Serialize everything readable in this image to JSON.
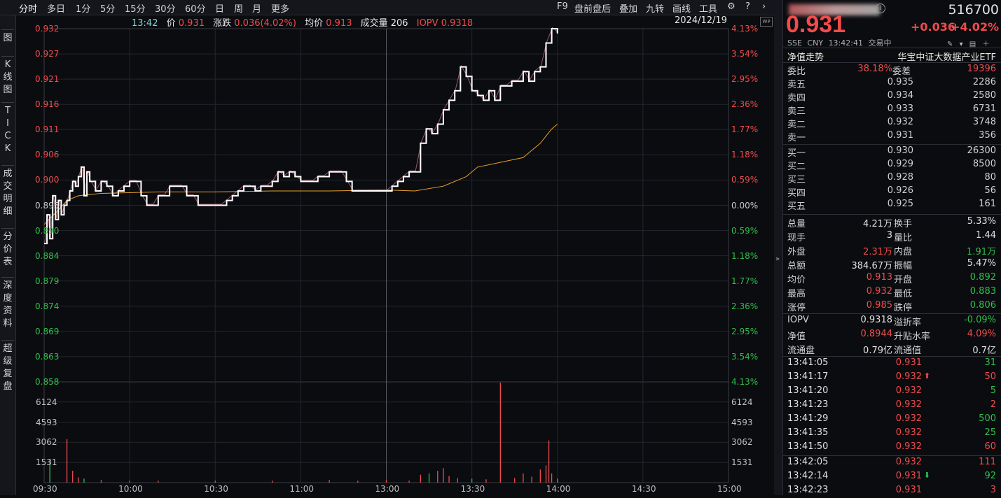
{
  "toolbar": {
    "left": [
      "分时",
      "多日",
      "1分",
      "5分",
      "15分",
      "30分",
      "60分",
      "日",
      "周",
      "月",
      "更多"
    ],
    "right": [
      "F9",
      "盘前盘后",
      "叠加",
      "九转",
      "画线",
      "工具"
    ]
  },
  "left_tabs": [
    "图",
    "K\n线\n图",
    "T\nI\nC\nK",
    "成\n交\n明\n细",
    "分\n价\n表",
    "深\n度\n资\n料",
    "超\n级\n复\n盘"
  ],
  "infobar": {
    "time": "13:42",
    "price_label": "价",
    "price": "0.931",
    "change_label": "涨跌",
    "change": "0.036(4.02%)",
    "avg_label": "均价",
    "avg": "0.913",
    "vol_label": "成交量",
    "vol": "206",
    "iopv_label": "IOPV",
    "iopv": "0.9318",
    "date": "2024/12/19"
  },
  "axis": {
    "price_ticks": [
      "0.932",
      "0.927",
      "0.921",
      "0.916",
      "0.911",
      "0.906",
      "0.900",
      "0.895",
      "0.890",
      "0.884",
      "0.879",
      "0.874",
      "0.869",
      "0.863",
      "0.858"
    ],
    "pct_ticks": [
      "4.13%",
      "3.54%",
      "2.95%",
      "2.36%",
      "1.77%",
      "1.18%",
      "0.59%",
      "0.00%",
      "0.59%",
      "1.18%",
      "1.77%",
      "2.36%",
      "2.95%",
      "3.54%",
      "4.13%"
    ],
    "vol_ticks": [
      "6124",
      "4593",
      "3062",
      "1531"
    ],
    "time_ticks": [
      "09:30",
      "10:00",
      "10:30",
      "11:00",
      "13:00",
      "13:30",
      "14:00",
      "14:30",
      "15:00"
    ]
  },
  "chart_data": {
    "type": "line",
    "ylim": [
      0.858,
      0.932
    ],
    "prev_close": 0.895,
    "price": [
      [
        0,
        0.887
      ],
      [
        1,
        0.893
      ],
      [
        2,
        0.888
      ],
      [
        3,
        0.897
      ],
      [
        4,
        0.892
      ],
      [
        5,
        0.896
      ],
      [
        6,
        0.893
      ],
      [
        7,
        0.895
      ],
      [
        8,
        0.896
      ],
      [
        9,
        0.898
      ],
      [
        10,
        0.9
      ],
      [
        11,
        0.899
      ],
      [
        12,
        0.901
      ],
      [
        13,
        0.903
      ],
      [
        14,
        0.897
      ],
      [
        15,
        0.902
      ],
      [
        16,
        0.9
      ],
      [
        18,
        0.898
      ],
      [
        20,
        0.9
      ],
      [
        22,
        0.899
      ],
      [
        24,
        0.897
      ],
      [
        26,
        0.898
      ],
      [
        28,
        0.899
      ],
      [
        30,
        0.9
      ],
      [
        32,
        0.9
      ],
      [
        34,
        0.897
      ],
      [
        36,
        0.895
      ],
      [
        38,
        0.895
      ],
      [
        40,
        0.897
      ],
      [
        42,
        0.897
      ],
      [
        44,
        0.899
      ],
      [
        46,
        0.899
      ],
      [
        48,
        0.899
      ],
      [
        50,
        0.897
      ],
      [
        52,
        0.897
      ],
      [
        54,
        0.895
      ],
      [
        56,
        0.895
      ],
      [
        58,
        0.895
      ],
      [
        60,
        0.895
      ],
      [
        62,
        0.895
      ],
      [
        64,
        0.896
      ],
      [
        66,
        0.897
      ],
      [
        68,
        0.898
      ],
      [
        70,
        0.899
      ],
      [
        72,
        0.899
      ],
      [
        74,
        0.898
      ],
      [
        76,
        0.899
      ],
      [
        78,
        0.899
      ],
      [
        80,
        0.9
      ],
      [
        82,
        0.902
      ],
      [
        84,
        0.901
      ],
      [
        86,
        0.902
      ],
      [
        88,
        0.901
      ],
      [
        90,
        0.9
      ],
      [
        92,
        0.9
      ],
      [
        94,
        0.9
      ],
      [
        96,
        0.901
      ],
      [
        98,
        0.901
      ],
      [
        100,
        0.902
      ],
      [
        102,
        0.902
      ],
      [
        104,
        0.902
      ],
      [
        106,
        0.9
      ],
      [
        108,
        0.898
      ],
      [
        110,
        0.898
      ],
      [
        112,
        0.898
      ],
      [
        114,
        0.898
      ],
      [
        116,
        0.898
      ],
      [
        118,
        0.898
      ],
      [
        120,
        0.898
      ],
      [
        122,
        0.899
      ],
      [
        124,
        0.9
      ],
      [
        126,
        0.901
      ],
      [
        128,
        0.902
      ],
      [
        130,
        0.902
      ],
      [
        132,
        0.908
      ],
      [
        134,
        0.911
      ],
      [
        136,
        0.91
      ],
      [
        138,
        0.912
      ],
      [
        140,
        0.915
      ],
      [
        142,
        0.917
      ],
      [
        144,
        0.919
      ],
      [
        146,
        0.924
      ],
      [
        148,
        0.922
      ],
      [
        150,
        0.919
      ],
      [
        152,
        0.918
      ],
      [
        154,
        0.917
      ],
      [
        156,
        0.919
      ],
      [
        158,
        0.917
      ],
      [
        160,
        0.92
      ],
      [
        162,
        0.92
      ],
      [
        164,
        0.921
      ],
      [
        166,
        0.921
      ],
      [
        168,
        0.923
      ],
      [
        170,
        0.921
      ],
      [
        172,
        0.923
      ],
      [
        174,
        0.924
      ],
      [
        176,
        0.929
      ],
      [
        178,
        0.932
      ],
      [
        180,
        0.931
      ]
    ],
    "avg": [
      [
        0,
        0.891
      ],
      [
        5,
        0.894
      ],
      [
        8,
        0.896
      ],
      [
        12,
        0.897
      ],
      [
        20,
        0.8975
      ],
      [
        40,
        0.8978
      ],
      [
        60,
        0.8978
      ],
      [
        80,
        0.898
      ],
      [
        100,
        0.898
      ],
      [
        120,
        0.8982
      ],
      [
        130,
        0.898
      ],
      [
        140,
        0.899
      ],
      [
        148,
        0.901
      ],
      [
        152,
        0.903
      ],
      [
        160,
        0.904
      ],
      [
        168,
        0.905
      ],
      [
        174,
        0.908
      ],
      [
        178,
        0.911
      ],
      [
        180,
        0.912
      ]
    ],
    "volume_ylim": [
      0,
      7650
    ],
    "volume": [
      [
        2,
        1800
      ],
      [
        8,
        3300
      ],
      [
        10,
        900
      ],
      [
        12,
        400
      ],
      [
        14,
        300
      ],
      [
        20,
        200
      ],
      [
        30,
        150
      ],
      [
        40,
        150
      ],
      [
        60,
        150
      ],
      [
        80,
        150
      ],
      [
        100,
        200
      ],
      [
        110,
        150
      ],
      [
        120,
        200
      ],
      [
        128,
        150
      ],
      [
        132,
        600
      ],
      [
        135,
        700
      ],
      [
        138,
        900
      ],
      [
        140,
        1100
      ],
      [
        142,
        500
      ],
      [
        145,
        350
      ],
      [
        150,
        300
      ],
      [
        155,
        250
      ],
      [
        160,
        7600
      ],
      [
        165,
        350
      ],
      [
        168,
        700
      ],
      [
        171,
        450
      ],
      [
        174,
        1000
      ],
      [
        176,
        1300
      ],
      [
        177,
        3200
      ],
      [
        178,
        700
      ],
      [
        180,
        300
      ]
    ]
  },
  "panel": {
    "name_blurred": "",
    "code": "516700",
    "price": "0.931",
    "change": "+0.036",
    "change_pct": "+4.02%",
    "market": "SSE",
    "currency": "CNY",
    "time": "13:42:41",
    "status": "交易中",
    "nav_trend": "净值走势",
    "fund_name": "华宝中证大数据产业ETF",
    "weibi_label": "委比",
    "weibi": "38.18%",
    "weicha_label": "委差",
    "weicha": "19396",
    "asks": [
      [
        "卖五",
        "0.935",
        "2286"
      ],
      [
        "卖四",
        "0.934",
        "2580"
      ],
      [
        "卖三",
        "0.933",
        "6731"
      ],
      [
        "卖二",
        "0.932",
        "3748"
      ],
      [
        "卖一",
        "0.931",
        "356"
      ]
    ],
    "bids": [
      [
        "买一",
        "0.930",
        "26300"
      ],
      [
        "买二",
        "0.929",
        "8500"
      ],
      [
        "买三",
        "0.928",
        "80"
      ],
      [
        "买四",
        "0.926",
        "56"
      ],
      [
        "买五",
        "0.925",
        "161"
      ]
    ],
    "stats": [
      [
        "总量",
        "4.21万",
        "white",
        "换手",
        "5.33%",
        "white"
      ],
      [
        "现手",
        "3",
        "white",
        "量比",
        "1.44",
        "white"
      ],
      [
        "外盘",
        "2.31万",
        "red",
        "内盘",
        "1.91万",
        "green"
      ],
      [
        "总额",
        "384.67万",
        "white",
        "振幅",
        "5.47%",
        "white"
      ],
      [
        "均价",
        "0.913",
        "red",
        "开盘",
        "0.892",
        "green"
      ],
      [
        "最高",
        "0.932",
        "red",
        "最低",
        "0.883",
        "green"
      ],
      [
        "涨停",
        "0.985",
        "red",
        "跌停",
        "0.806",
        "green"
      ]
    ],
    "stats2": [
      [
        "IOPV",
        "0.9318",
        "white",
        "溢折率",
        "-0.09%",
        "green"
      ],
      [
        "净值",
        "0.8944",
        "red",
        "升贴水率",
        "4.09%",
        "red"
      ],
      [
        "流通盘",
        "0.79亿",
        "white",
        "流通值",
        "0.7亿",
        "white"
      ]
    ],
    "ticks": [
      [
        "13:41:05",
        "0.931",
        "",
        "31",
        "green"
      ],
      [
        "13:41:17",
        "0.932",
        "up",
        "50",
        "red"
      ],
      [
        "13:41:20",
        "0.932",
        "",
        "5",
        "green"
      ],
      [
        "13:41:23",
        "0.932",
        "",
        "2",
        "red"
      ],
      [
        "13:41:29",
        "0.932",
        "",
        "500",
        "green"
      ],
      [
        "13:41:35",
        "0.932",
        "",
        "25",
        "green"
      ],
      [
        "13:41:50",
        "0.932",
        "",
        "60",
        "red"
      ],
      [
        "13:42:05",
        "0.932",
        "",
        "111",
        "red"
      ],
      [
        "13:42:14",
        "0.931",
        "down",
        "92",
        "green"
      ],
      [
        "13:42:23",
        "0.931",
        "",
        "3",
        "red"
      ]
    ]
  },
  "colors": {
    "up": "#f24b4b",
    "down": "#2fbf4a",
    "price_line": "#ffffff",
    "avg_line": "#e8a02a",
    "grid": "#2a2d34"
  }
}
